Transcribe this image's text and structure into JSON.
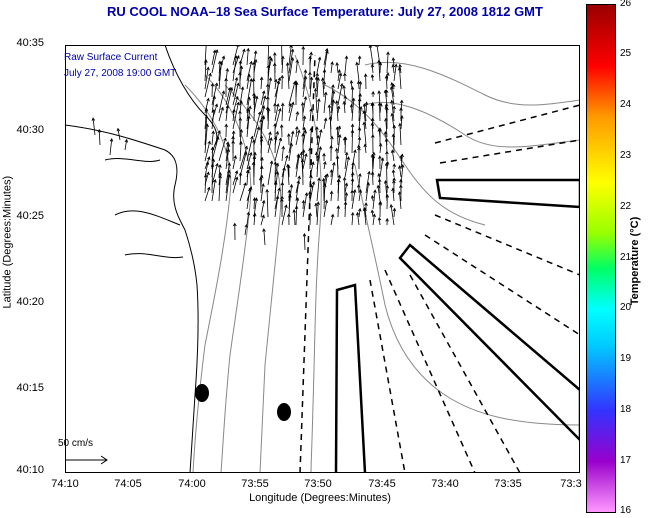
{
  "title": "RU COOL  NOAA–18  Sea Surface Temperature:  July 27, 2008 1812 GMT",
  "legend": {
    "line1": "Raw Surface Current",
    "line2": "July 27, 2008 19:00 GMT"
  },
  "scale": {
    "label": "50 cm/s"
  },
  "axes": {
    "ylabel": "Latitude (Degrees:Minutes)",
    "xlabel": "Longitude (Degrees:Minutes)",
    "yticks": [
      "40:35",
      "40:30",
      "40:25",
      "40:20",
      "40:15",
      "40:10"
    ],
    "xticks": [
      "74:10",
      "74:05",
      "74:00",
      "73:55",
      "73:50",
      "73:45",
      "73:40",
      "73:35",
      "73:3"
    ]
  },
  "colorbar": {
    "label": "Temperature (°C)",
    "ticks": [
      "26",
      "25",
      "24",
      "23",
      "22",
      "21",
      "20",
      "19",
      "18",
      "17",
      "16"
    ],
    "colors": [
      "#ff99ff",
      "#9900cc",
      "#3333ff",
      "#00ccff",
      "#00ffff",
      "#00ff66",
      "#99ff00",
      "#ffff00",
      "#ff9900",
      "#ff0000",
      "#990000"
    ]
  },
  "map": {
    "land_color": "#ffffff",
    "line_color": "#000000",
    "bathy_color": "#888888",
    "arrow_color": "#000000"
  }
}
